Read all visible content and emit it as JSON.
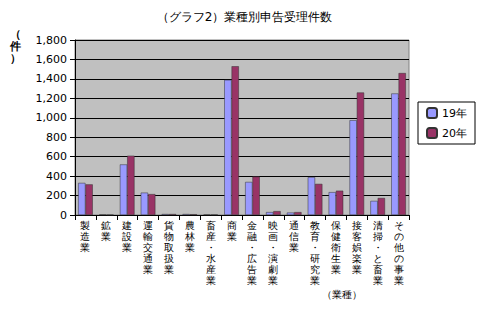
{
  "chart_data": {
    "type": "bar",
    "title": "（グラフ2）業種別申告受理件数",
    "y_label": "（件）",
    "x_label": "（業種）",
    "categories": [
      "製造業",
      "鉱業",
      "建設業",
      "運輸交通業",
      "貨物取扱業",
      "農林業",
      "畜産・水産業",
      "商業",
      "金融・広告業",
      "映画・演劇業",
      "通信業",
      "教育・研究業",
      "保健衛生業",
      "接客娯楽業",
      "清掃・と畜業",
      "その他の事業"
    ],
    "series": [
      {
        "name": "19年",
        "color": "#9999ff",
        "values": [
          330,
          5,
          520,
          230,
          10,
          10,
          5,
          1390,
          340,
          30,
          25,
          390,
          235,
          975,
          145,
          1250
        ]
      },
      {
        "name": "20年",
        "color": "#993366",
        "values": [
          315,
          3,
          610,
          215,
          10,
          8,
          5,
          1530,
          395,
          40,
          30,
          320,
          250,
          1260,
          175,
          1460
        ]
      }
    ],
    "ylim": [
      0,
      1800
    ],
    "yticks": [
      0,
      200,
      400,
      600,
      800,
      {
        "value": 1000,
        "label": "1,000"
      },
      {
        "value": 1200,
        "label": "1,200"
      },
      {
        "value": 1400,
        "label": "1,400"
      },
      {
        "value": 1600,
        "label": "1,600"
      },
      {
        "value": 1800,
        "label": "1,800"
      }
    ],
    "grid": true,
    "legend": "right"
  }
}
